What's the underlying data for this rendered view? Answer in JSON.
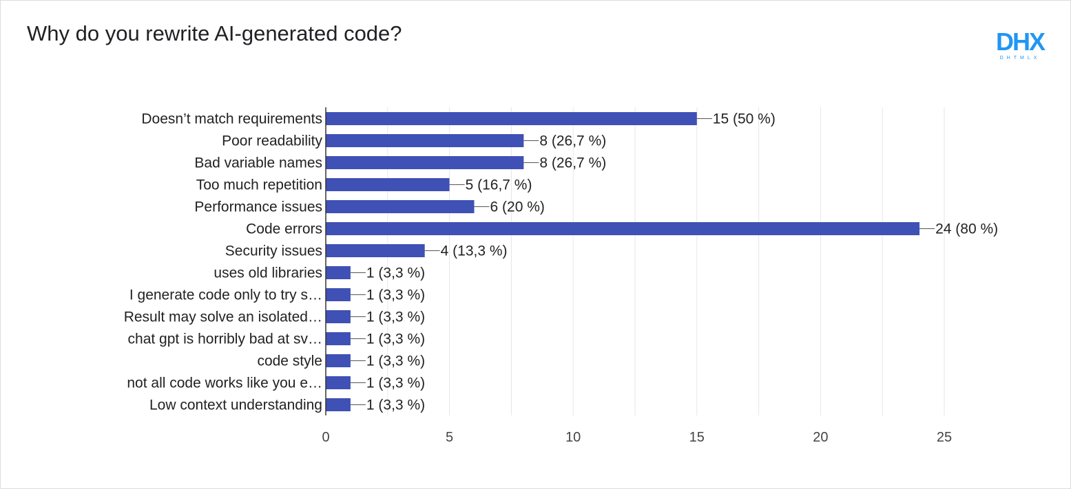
{
  "title": "Why do you rewrite AI-generated code?",
  "logo": {
    "text": "DHX",
    "subtext": "DHTMLX",
    "color": "#2196f3"
  },
  "colors": {
    "bar": "#3f51b5",
    "grid": "#e6e6e6",
    "axis": "#333333"
  },
  "chart_data": {
    "type": "bar",
    "orientation": "horizontal",
    "title": "Why do you rewrite AI-generated code?",
    "categories": [
      "Doesn’t match requirements",
      "Poor readability",
      "Bad variable names",
      "Too much repetition",
      "Performance issues",
      "Code errors",
      "Security issues",
      "uses old libraries",
      "I generate code only to try s…",
      "Result may solve an isolated…",
      "chat gpt is horribly bad at sv…",
      "code style",
      "not all code works like you e…",
      "Low context understanding"
    ],
    "values": [
      15,
      8,
      8,
      5,
      6,
      24,
      4,
      1,
      1,
      1,
      1,
      1,
      1,
      1
    ],
    "data_labels": [
      "15 (50 %)",
      "8 (26,7 %)",
      "8 (26,7 %)",
      "5 (16,7 %)",
      "6 (20 %)",
      "24 (80 %)",
      "4 (13,3 %)",
      "1 (3,3 %)",
      "1 (3,3 %)",
      "1 (3,3 %)",
      "1 (3,3 %)",
      "1 (3,3 %)",
      "1 (3,3 %)",
      "1 (3,3 %)"
    ],
    "xlim": [
      0,
      25
    ],
    "xticks": [
      "0",
      "5",
      "10",
      "15",
      "20",
      "25"
    ],
    "grid": true,
    "legend": "none"
  }
}
